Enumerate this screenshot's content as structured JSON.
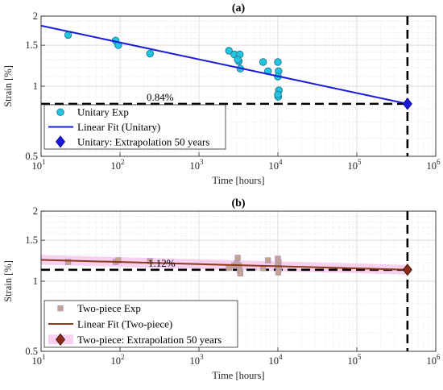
{
  "chart_data": [
    {
      "type": "scatter",
      "panel_label": "(a)",
      "xlabel": "Time [hours]",
      "ylabel": "Strain [%]",
      "xscale": "log",
      "yscale": "log",
      "xlim": [
        10,
        1000000
      ],
      "ylim": [
        0.5,
        2
      ],
      "grid": true,
      "x_ticks": [
        "10",
        "10",
        "10",
        "10",
        "10",
        "10"
      ],
      "x_tick_exponents": [
        "1",
        "2",
        "3",
        "4",
        "5",
        "6"
      ],
      "y_ticks": [
        "0.5",
        "1",
        "1.5",
        "2"
      ],
      "legend_position": "bottom-left",
      "colors": {
        "points": "#22c4df",
        "fit": "#1a1adc",
        "extrapolation": "#1a1adc"
      },
      "series": [
        {
          "name": "Unitary Exp",
          "kind": "scatter",
          "x": [
            22,
            88,
            95,
            240,
            2400,
            2800,
            3200,
            3300,
            3100,
            3350,
            6500,
            7500,
            10000,
            10200,
            10000,
            10300,
            10100,
            10000
          ],
          "y": [
            1.66,
            1.57,
            1.5,
            1.38,
            1.42,
            1.37,
            1.28,
            1.37,
            1.3,
            1.19,
            1.27,
            1.16,
            1.27,
            1.16,
            1.1,
            0.96,
            0.9,
            0.92
          ]
        },
        {
          "name": "Linear Fit (Unitary)",
          "kind": "line",
          "x": [
            10,
            438000
          ],
          "y": [
            1.82,
            0.84
          ]
        },
        {
          "name": "Unitary: Extrapolation 50 years",
          "kind": "marker",
          "x": [
            438000
          ],
          "y": [
            0.84
          ]
        }
      ],
      "reference_lines": {
        "y": 0.84,
        "x": 438000
      },
      "annotation": "0.84%"
    },
    {
      "type": "scatter",
      "panel_label": "(b)",
      "xlabel": "Time [hours]",
      "ylabel": "Strain [%]",
      "xscale": "log",
      "yscale": "log",
      "xlim": [
        10,
        1000000
      ],
      "ylim": [
        0.5,
        2
      ],
      "grid": true,
      "x_ticks": [
        "10",
        "10",
        "10",
        "10",
        "10",
        "10"
      ],
      "x_tick_exponents": [
        "1",
        "2",
        "3",
        "4",
        "5",
        "6"
      ],
      "y_ticks": [
        "0.5",
        "1",
        "1.5",
        "2"
      ],
      "legend_position": "bottom-left",
      "colors": {
        "points": "#c2a58b",
        "fit": "#8b3a1a",
        "extrapolation": "#8b2a1a",
        "band": "#f4c2ea"
      },
      "series": [
        {
          "name": "Two-piece Exp",
          "kind": "scatter",
          "x": [
            22,
            88,
            95,
            240,
            2400,
            2800,
            3000,
            3100,
            3200,
            3300,
            3350,
            6500,
            7500,
            10000,
            10200,
            10000,
            10300,
            10100
          ],
          "y": [
            1.21,
            1.21,
            1.23,
            1.22,
            1.14,
            1.17,
            1.19,
            1.26,
            1.17,
            1.11,
            1.08,
            1.14,
            1.23,
            1.25,
            1.21,
            1.17,
            1.14,
            1.09
          ]
        },
        {
          "name": "Linear Fit (Two-piece)",
          "kind": "line",
          "x": [
            10,
            438000
          ],
          "y": [
            1.235,
            1.12
          ]
        },
        {
          "name": "Two-piece: Extrapolation 50 years",
          "kind": "marker",
          "x": [
            438000
          ],
          "y": [
            1.12
          ]
        }
      ],
      "reference_lines": {
        "y": 1.12,
        "x": 438000
      },
      "annotation": "1.12%"
    }
  ]
}
